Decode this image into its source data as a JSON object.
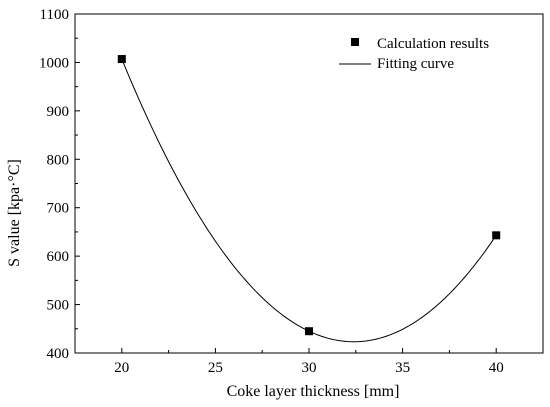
{
  "chart_data": {
    "type": "scatter",
    "title": "",
    "xlabel": "Coke layer thickness [mm]",
    "ylabel": "S value [kpa·°C]",
    "xlim": [
      17.5,
      42.5
    ],
    "ylim": [
      400,
      1100
    ],
    "xticks": [
      20,
      25,
      30,
      35,
      40
    ],
    "yticks": [
      400,
      500,
      600,
      700,
      800,
      900,
      1000,
      1100
    ],
    "grid": false,
    "legend_position": "top-right",
    "series": [
      {
        "name": "Calculation results",
        "kind": "points",
        "marker": "square",
        "color": "#000000",
        "x": [
          20,
          30,
          40
        ],
        "y": [
          1007,
          445,
          643
        ]
      },
      {
        "name": "Fitting curve",
        "kind": "line",
        "color": "#000000",
        "fit": "quadratic",
        "x_range": [
          20,
          40
        ]
      }
    ]
  }
}
